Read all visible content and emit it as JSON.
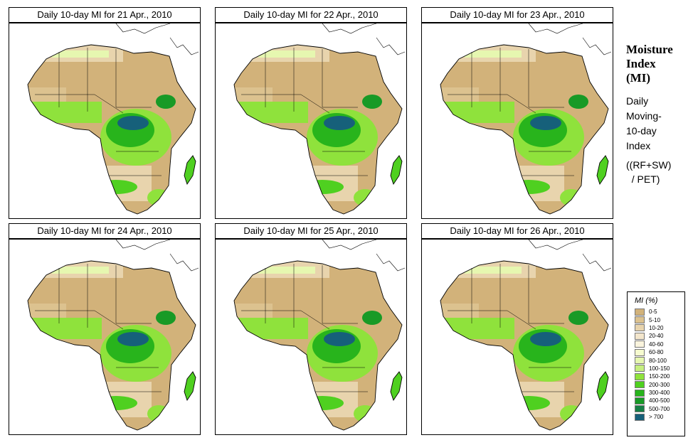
{
  "panels": [
    {
      "title": "Daily 10-day MI for  21 Apr., 2010"
    },
    {
      "title": "Daily 10-day MI for  22 Apr., 2010"
    },
    {
      "title": "Daily 10-day MI for  23 Apr., 2010"
    },
    {
      "title": "Daily 10-day MI for  24 Apr., 2010"
    },
    {
      "title": "Daily 10-day MI for  25 Apr., 2010"
    },
    {
      "title": "Daily 10-day MI for  26 Apr., 2010"
    }
  ],
  "side": {
    "title_lines": [
      "Moisture",
      "Index",
      "(MI)"
    ],
    "desc_lines": [
      "Daily",
      "Moving-",
      "10-day",
      "Index"
    ],
    "formula_lines": [
      "((RF+SW)",
      "  / PET)"
    ]
  },
  "legend": {
    "title": "MI (%)",
    "items": [
      {
        "label": "0-5",
        "color": "#d2b27a"
      },
      {
        "label": "5-10",
        "color": "#dcc28f"
      },
      {
        "label": "10-20",
        "color": "#e8d4ad"
      },
      {
        "label": "20-40",
        "color": "#f3e6cc"
      },
      {
        "label": "40-60",
        "color": "#faf4dd"
      },
      {
        "label": "60-80",
        "color": "#f6fbcf"
      },
      {
        "label": "80-100",
        "color": "#e6f7b0"
      },
      {
        "label": "100-150",
        "color": "#c6ef80"
      },
      {
        "label": "150-200",
        "color": "#8fe23c"
      },
      {
        "label": "200-300",
        "color": "#4fd020"
      },
      {
        "label": "300-400",
        "color": "#28b41c"
      },
      {
        "label": "400-500",
        "color": "#189a26"
      },
      {
        "label": "500-700",
        "color": "#167f46"
      },
      {
        "label": "> 700",
        "color": "#16607a"
      }
    ]
  }
}
